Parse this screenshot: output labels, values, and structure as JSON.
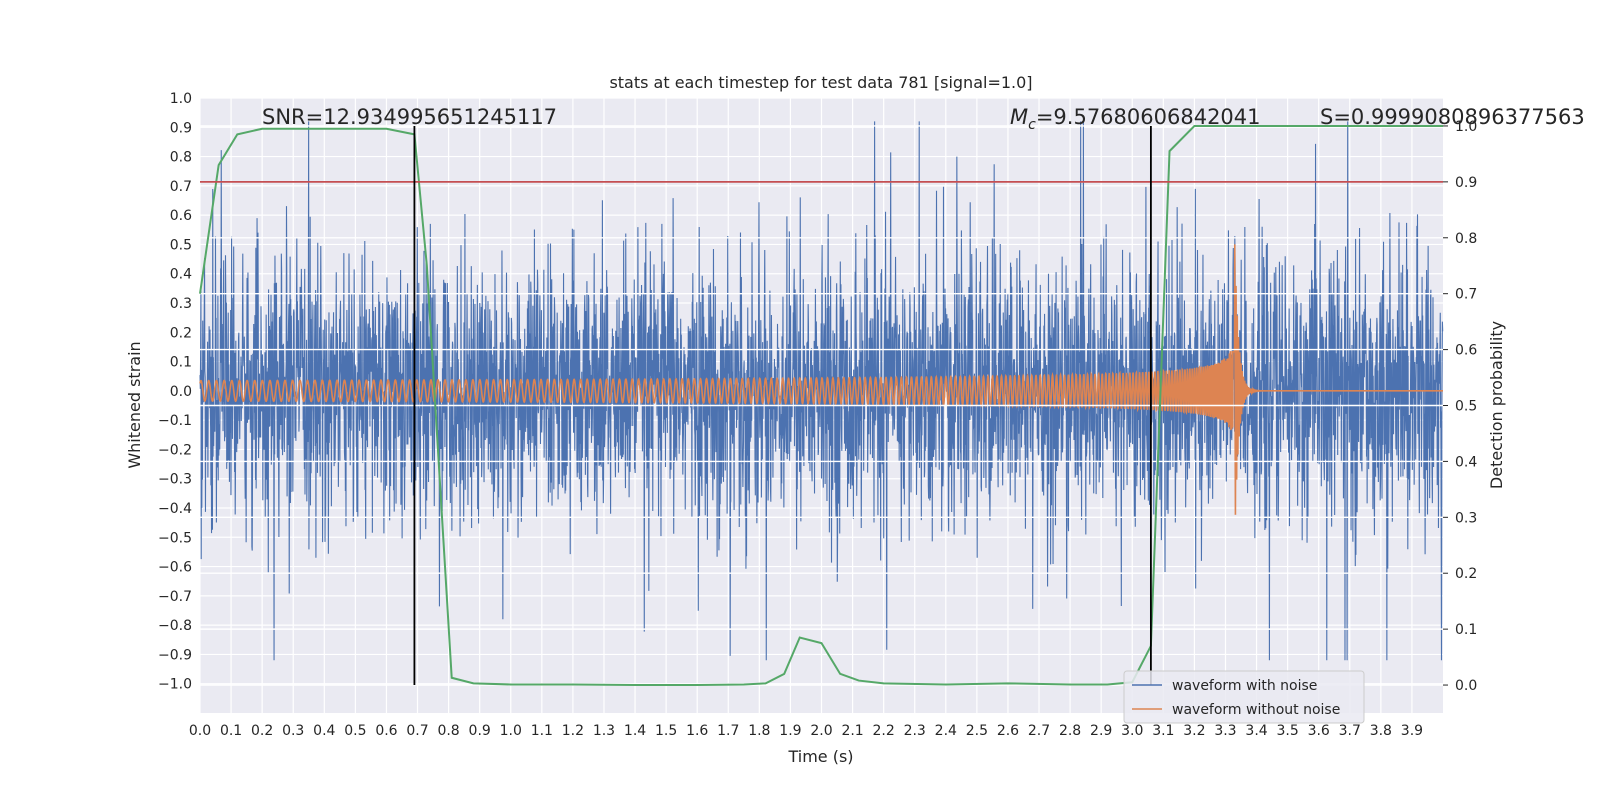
{
  "chart_data": {
    "type": "line",
    "title": "stats at each timestep for test data 781 [signal=1.0]",
    "xlabel": "Time (s)",
    "ylabel": "Whitened strain",
    "ylabel_right": "Detection probability",
    "xlim": [
      0.0,
      4.0
    ],
    "ylim": [
      -1.1,
      1.0
    ],
    "ylim_right": [
      -0.05,
      1.05
    ],
    "x_ticks": [
      "0.0",
      "0.1",
      "0.2",
      "0.3",
      "0.4",
      "0.5",
      "0.6",
      "0.7",
      "0.8",
      "0.9",
      "1.0",
      "1.1",
      "1.2",
      "1.3",
      "1.4",
      "1.5",
      "1.6",
      "1.7",
      "1.8",
      "1.9",
      "2.0",
      "2.1",
      "2.2",
      "2.3",
      "2.4",
      "2.5",
      "2.6",
      "2.7",
      "2.8",
      "2.9",
      "3.0",
      "3.1",
      "3.2",
      "3.3",
      "3.4",
      "3.5",
      "3.6",
      "3.7",
      "3.8",
      "3.9"
    ],
    "y_ticks": [
      "1.0",
      "0.9",
      "0.8",
      "0.7",
      "0.6",
      "0.5",
      "0.4",
      "0.3",
      "0.2",
      "0.1",
      "0.0",
      "-0.1",
      "-0.2",
      "-0.3",
      "-0.4",
      "-0.5",
      "-0.6",
      "-0.7",
      "-0.8",
      "-0.9",
      "-1.0"
    ],
    "y_ticks_right": [
      "1.0",
      "0.9",
      "0.8",
      "0.7",
      "0.6",
      "0.5",
      "0.4",
      "0.3",
      "0.2",
      "0.1",
      "0.0"
    ],
    "series": [
      {
        "name": "waveform with noise",
        "color": "#4c72b0",
        "amplitude_typical": 0.4,
        "amplitude_max": 0.9
      },
      {
        "name": "waveform without noise",
        "color": "#dd8452",
        "merger_time": 3.33,
        "peak_amplitude": 0.5
      },
      {
        "name": "detection probability",
        "color": "#55a868",
        "axis": "right",
        "x": [
          0.0,
          0.06,
          0.12,
          0.2,
          0.4,
          0.6,
          0.69,
          0.73,
          0.81,
          0.88,
          1.0,
          1.2,
          1.4,
          1.6,
          1.75,
          1.82,
          1.88,
          1.93,
          2.0,
          2.06,
          2.12,
          2.2,
          2.4,
          2.6,
          2.8,
          2.92,
          3.0,
          3.06,
          3.12,
          3.2,
          3.3,
          4.0
        ],
        "y": [
          0.7,
          0.93,
          0.985,
          0.995,
          0.995,
          0.995,
          0.985,
          0.75,
          0.013,
          0.003,
          0.001,
          0.001,
          0.0,
          0.0,
          0.001,
          0.003,
          0.02,
          0.085,
          0.075,
          0.02,
          0.008,
          0.003,
          0.001,
          0.003,
          0.001,
          0.001,
          0.005,
          0.07,
          0.955,
          1.0,
          1.0,
          1.0
        ]
      }
    ],
    "threshold_line": {
      "value": 0.9,
      "axis": "right",
      "color": "#c44e52"
    },
    "vertical_lines": [
      {
        "x": 0.69,
        "color": "#000000"
      },
      {
        "x": 3.06,
        "color": "#000000"
      }
    ],
    "annotations": {
      "snr": "SNR=12.934995651245117",
      "mc_symbol": "M",
      "mc_sub": "c",
      "mc_value": "=9.57680606842041",
      "s": "S=0.9999080896377563"
    },
    "legend": {
      "placement": "lower-right",
      "entries": [
        "waveform with noise",
        "waveform without noise"
      ]
    },
    "grid": true
  }
}
